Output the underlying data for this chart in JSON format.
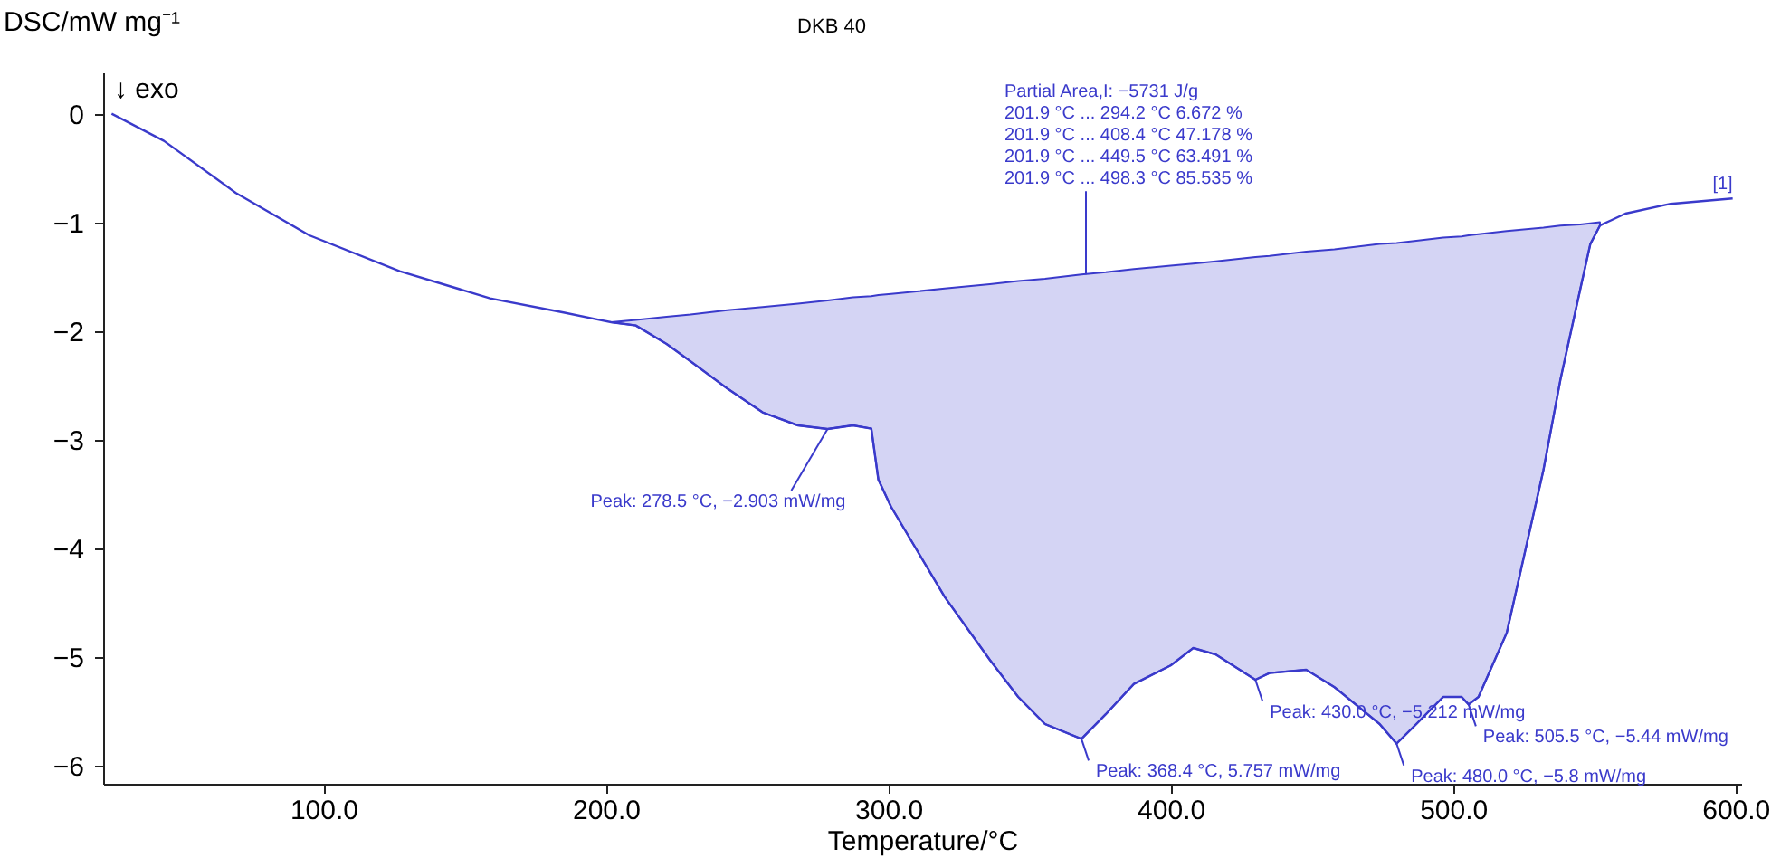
{
  "chart_data": {
    "type": "line",
    "title": "DKB 40",
    "xlabel": "Temperature/°C",
    "ylabel": "DSC/mW mg⁻¹",
    "xlim": [
      22,
      602
    ],
    "ylim": [
      -6.17,
      0.38
    ],
    "xticks": [
      {
        "value": 100,
        "label": "100.0"
      },
      {
        "value": 200,
        "label": "200.0"
      },
      {
        "value": 300,
        "label": "300.0"
      },
      {
        "value": 400,
        "label": "400.0"
      },
      {
        "value": 500,
        "label": "500.0"
      },
      {
        "value": 600,
        "label": "600.0"
      }
    ],
    "yticks": [
      {
        "value": -6,
        "label": "−6"
      },
      {
        "value": -5,
        "label": "−5"
      },
      {
        "value": -4,
        "label": "−4"
      },
      {
        "value": -3,
        "label": "−3"
      },
      {
        "value": -2,
        "label": "−2"
      },
      {
        "value": -1,
        "label": "−1"
      },
      0
    ],
    "series": [
      {
        "color": "#3a3acb",
        "x": [
          25,
          43.5,
          69,
          95,
          127,
          159,
          185,
          198,
          201.9,
          210.6,
          221.5,
          230,
          243,
          255.5,
          268,
          278.5,
          287.5,
          294,
          296.5,
          301,
          320,
          336,
          346,
          355.5,
          368.4,
          377,
          387,
          400,
          408,
          416,
          430,
          435,
          448,
          458,
          474,
          480,
          487,
          496.5,
          503,
          505.5,
          509,
          519,
          532,
          538,
          545,
          548.6,
          552,
          561,
          577,
          599
        ],
        "values": [
          0,
          -0.25,
          -0.73,
          -1.12,
          -1.45,
          -1.7,
          -1.83,
          -1.9,
          -1.92,
          -1.95,
          -2.12,
          -2.28,
          -2.53,
          -2.75,
          -2.87,
          -2.903,
          -2.87,
          -2.9,
          -3.37,
          -3.62,
          -4.45,
          -5.03,
          -5.37,
          -5.62,
          -5.757,
          -5.53,
          -5.25,
          -5.08,
          -4.92,
          -4.98,
          -5.212,
          -5.15,
          -5.12,
          -5.28,
          -5.62,
          -5.8,
          -5.62,
          -5.37,
          -5.37,
          -5.44,
          -5.37,
          -4.78,
          -3.28,
          -2.45,
          -1.62,
          -1.2,
          -1.03,
          -0.92,
          -0.83,
          -0.78
        ],
        "lower": [
          null,
          null,
          null,
          null,
          null,
          null,
          null,
          null,
          -1.92,
          -1.95,
          -2.12,
          -2.28,
          -2.53,
          -2.75,
          -2.87,
          -2.903,
          -2.87,
          -2.9,
          -3.37,
          -3.62,
          -4.45,
          -5.03,
          -5.37,
          -5.62,
          -5.757,
          -5.53,
          -5.25,
          -5.08,
          -4.92,
          -4.98,
          -5.212,
          -5.15,
          -5.12,
          -5.28,
          -5.62,
          -5.8,
          -5.62,
          -5.37,
          -5.37,
          -5.44,
          -5.37,
          -4.78,
          -3.28,
          -2.45,
          -1.62,
          -1.2,
          -1.03,
          null,
          null,
          null
        ],
        "upper": [
          null,
          null,
          null,
          null,
          null,
          null,
          null,
          null,
          -1.92,
          -1.9,
          -1.87,
          -1.85,
          -1.81,
          -1.78,
          -1.75,
          -1.72,
          -1.69,
          -1.68,
          -1.67,
          -1.66,
          -1.61,
          -1.57,
          -1.54,
          -1.52,
          -1.48,
          -1.46,
          -1.43,
          -1.4,
          -1.38,
          -1.36,
          -1.32,
          -1.31,
          -1.27,
          -1.25,
          -1.2,
          -1.19,
          -1.17,
          -1.14,
          -1.13,
          -1.12,
          -1.11,
          -1.08,
          -1.05,
          -1.03,
          -1.02,
          -1.01,
          -1.0,
          null,
          null,
          null
        ]
      }
    ],
    "annotations": [
      "↓ exo",
      {
        "text": "Partial Area,I:            −5731 J/g\n201.9 °C ... 294.2 °C   6.672 %\n201.9 °C ... 408.4 °C  47.178 %\n201.9 °C ... 449.5 °C  63.491 %\n201.9 °C ... 498.3 °C  85.535 %",
        "x": 370,
        "y": -1.48
      },
      {
        "text": "[1]",
        "x": 599,
        "y": -0.78
      },
      {
        "text": "Peak: 278.5 °C, −2.903 mW/mg",
        "x": 278.5,
        "y": -2.903
      },
      {
        "text": "Peak: 368.4 °C, 5.757 mW/mg",
        "x": 368.4,
        "y": -5.757
      },
      {
        "text": "Peak: 430.0 °C, −5.212 mW/mg",
        "x": 430.0,
        "y": -5.212
      },
      {
        "text": "Peak: 480.0 °C, −5.8 mW/mg",
        "x": 480.0,
        "y": -5.8
      },
      {
        "text": "Peak: 505.5 °C, −5.44 mW/mg",
        "x": 505.5,
        "y": -5.44
      }
    ]
  }
}
